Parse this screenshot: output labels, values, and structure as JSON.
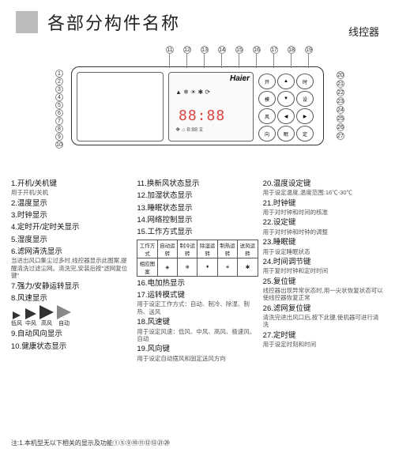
{
  "header": {
    "title": "各部分构件名称",
    "sub": "线控器"
  },
  "diagram": {
    "brand": "Haier",
    "segment": "88:88",
    "icons_row1": "▲ ❄ ☀ ✱ ⟳",
    "icons_row2": "❖ ⌂ 8:88 ⧖",
    "callouts_top": [
      "11",
      "12",
      "13",
      "14",
      "15",
      "16",
      "17",
      "18",
      "19"
    ],
    "callouts_left": [
      "1",
      "2",
      "3",
      "4",
      "5",
      "6",
      "7",
      "8",
      "9",
      "10"
    ],
    "callouts_right": [
      "20",
      "21",
      "22",
      "23",
      "24",
      "25",
      "26",
      "27"
    ]
  },
  "col1": [
    {
      "t": "1.开机/关机键",
      "d": "用于开机/关机"
    },
    {
      "t": "2.温度显示",
      "d": ""
    },
    {
      "t": "3.时钟显示",
      "d": ""
    },
    {
      "t": "4.定时开/定时关显示",
      "d": ""
    },
    {
      "t": "5.湿度显示",
      "d": ""
    },
    {
      "t": "6.滤网清洗显示",
      "d": "当进出风口集尘过多时,线控器显示此图案,提醒清洗过滤尘网。清洗完,安装后按\"滤网复位键\""
    },
    {
      "t": "7.强力/安静运转显示",
      "d": ""
    },
    {
      "t": "8.风速显示",
      "d": ""
    },
    {
      "wind": true,
      "labels": [
        "低风",
        "中风",
        "高风",
        "自动"
      ]
    },
    {
      "t": "9.自动风向显示",
      "d": ""
    },
    {
      "t": "10.健康状态显示",
      "d": ""
    }
  ],
  "col2": [
    {
      "t": "11.换新风状态显示",
      "d": ""
    },
    {
      "t": "12.加湿状态显示",
      "d": ""
    },
    {
      "t": "13.睡眠状态显示",
      "d": ""
    },
    {
      "t": "14.网络控制显示",
      "d": ""
    },
    {
      "t": "15.工作方式显示",
      "d": ""
    },
    {
      "table": true,
      "head": [
        "工作方式",
        "自动运转",
        "制冷运转",
        "除湿运转",
        "制热运转",
        "送风运转"
      ],
      "row": [
        "相应图案",
        "◈",
        "❄",
        "♦",
        "☀",
        "✱"
      ]
    },
    {
      "t": "16.电加热显示",
      "d": ""
    },
    {
      "t": "17.运转模式键",
      "d": "用于设定工作方式：自动、制冷、除湿、制热、送风"
    },
    {
      "t": "18.风速键",
      "d": "用于设定风速：低风、中风、高风、极速风、自动"
    },
    {
      "t": "19.风向键",
      "d": "用于设定自动摆风和固定送风方向"
    }
  ],
  "col3": [
    {
      "t": "20.温度设定键",
      "d": "用于设定温度,温度范围:16℃-30℃"
    },
    {
      "t": "21.时钟键",
      "d": "用于对时钟和时间的核准"
    },
    {
      "t": "22.设定键",
      "d": "用于对时钟和时钟的调整"
    },
    {
      "t": "23.睡眠键",
      "d": "用于设定睡眠状态"
    },
    {
      "t": "24.时间调节键",
      "d": "用于复时时钟和定时时间"
    },
    {
      "t": "25.复位键",
      "d": "线控器出现异常状态时,用一尖状恢复状态可以使线控器恢复正常"
    },
    {
      "t": "26.滤网复位键",
      "d": "清洗完进出风口后,按下此键,使机器可进行清洗"
    },
    {
      "t": "27.定时键",
      "d": "用于设定时刻和时间"
    }
  ],
  "footnote": "注:1.本机型无以下相关的显示及功能①⑤⑨⑩⑪⑫⑬㉑㉙"
}
